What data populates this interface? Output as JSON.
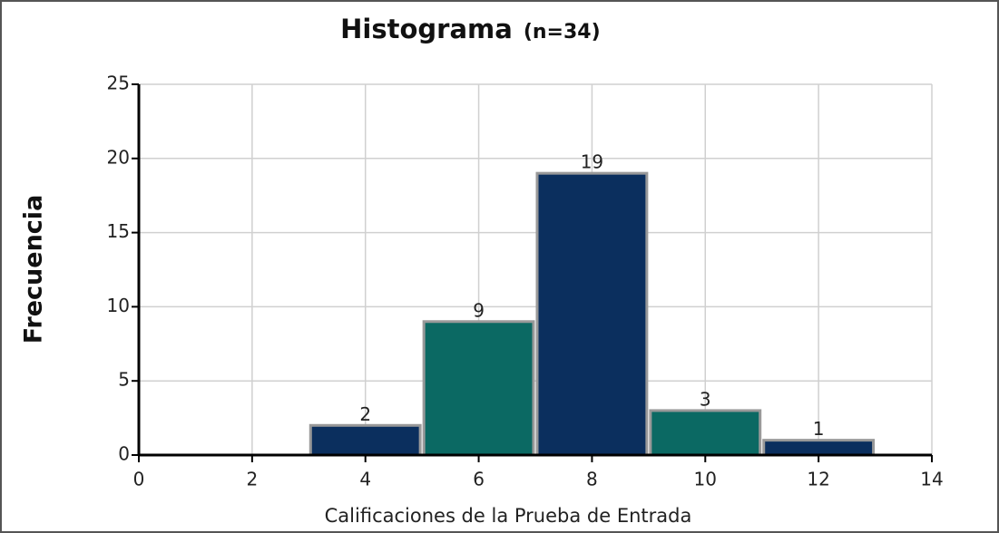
{
  "chart_data": {
    "type": "histogram",
    "title": "Histograma",
    "subtitle": "(n=34)",
    "x_label": "Calificaciones de la Prueba de Entrada",
    "y_label": "Frecuencia",
    "bins": [
      3,
      5,
      7,
      9,
      11,
      13
    ],
    "values": [
      2,
      9,
      19,
      3,
      1
    ],
    "colors": [
      "#0b2f5e",
      "#0b6963",
      "#0b2f5e",
      "#0b6963",
      "#0b2f5e"
    ],
    "xlim": [
      0,
      14
    ],
    "xticks": [
      0,
      2,
      4,
      6,
      8,
      10,
      12,
      14
    ],
    "ylim": [
      0,
      25
    ],
    "yticks": [
      0,
      5,
      10,
      15,
      20,
      25
    ],
    "grid": true
  }
}
